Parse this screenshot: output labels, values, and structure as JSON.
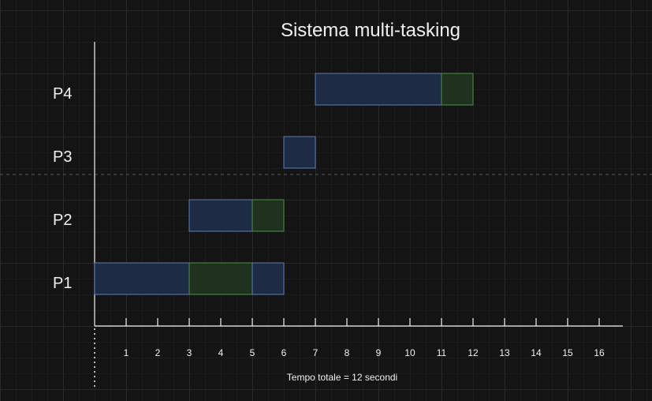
{
  "title": "Sistema multi-tasking",
  "processes": [
    "P1",
    "P2",
    "P3",
    "P4"
  ],
  "x_ticks": [
    1,
    2,
    3,
    4,
    5,
    6,
    7,
    8,
    9,
    10,
    11,
    12,
    13,
    14,
    15,
    16
  ],
  "x_range": [
    0,
    16
  ],
  "caption": "Tempo totale = 12 secondi",
  "colors": {
    "cpu_fill": "#1e2b44",
    "cpu_stroke": "#5d7bb5",
    "io_fill": "#1f3220",
    "io_stroke": "#4f8a47",
    "axis": "#f0f0f0",
    "text": "#f0f0f0"
  },
  "segments": [
    {
      "process": "P1",
      "kind": "cpu",
      "start": 0,
      "end": 3
    },
    {
      "process": "P1",
      "kind": "io",
      "start": 3,
      "end": 5
    },
    {
      "process": "P1",
      "kind": "cpu",
      "start": 5,
      "end": 6
    },
    {
      "process": "P2",
      "kind": "cpu",
      "start": 3,
      "end": 5
    },
    {
      "process": "P2",
      "kind": "io",
      "start": 5,
      "end": 6
    },
    {
      "process": "P3",
      "kind": "cpu",
      "start": 6,
      "end": 7
    },
    {
      "process": "P4",
      "kind": "cpu",
      "start": 7,
      "end": 11
    },
    {
      "process": "P4",
      "kind": "io",
      "start": 11,
      "end": 12
    }
  ]
}
